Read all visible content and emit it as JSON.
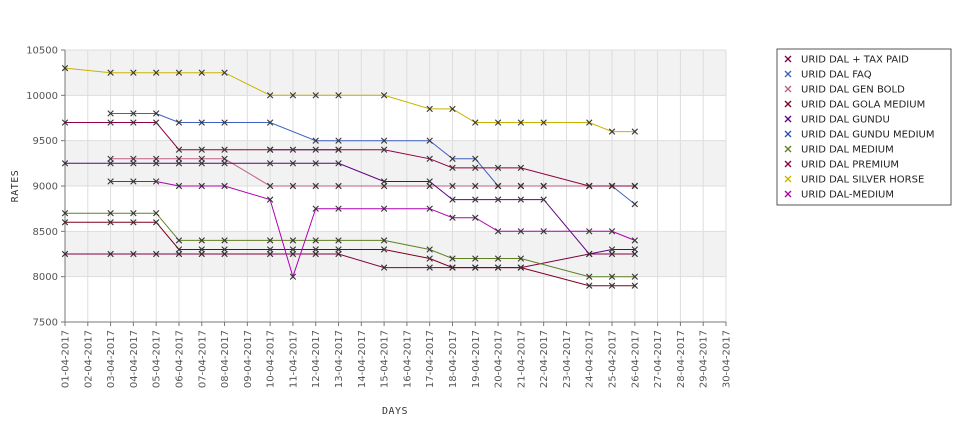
{
  "chart_data": {
    "type": "line",
    "xlabel": "DAYS",
    "ylabel": "RATES",
    "ylim": [
      7500,
      10500
    ],
    "yticks": [
      7500,
      8000,
      8500,
      9000,
      9500,
      10000,
      10500
    ],
    "grid": true,
    "legend_position": "right",
    "x": [
      "01-04-2017",
      "02-04-2017",
      "03-04-2017",
      "04-04-2017",
      "05-04-2017",
      "06-04-2017",
      "07-04-2017",
      "08-04-2017",
      "09-04-2017",
      "10-04-2017",
      "11-04-2017",
      "12-04-2017",
      "13-04-2017",
      "14-04-2017",
      "15-04-2017",
      "16-04-2017",
      "17-04-2017",
      "18-04-2017",
      "19-04-2017",
      "20-04-2017",
      "21-04-2017",
      "22-04-2017",
      "23-04-2017",
      "24-04-2017",
      "25-04-2017",
      "26-04-2017",
      "27-04-2017",
      "28-04-2017",
      "29-04-2017",
      "30-04-2017"
    ],
    "series": [
      {
        "name": "URID DAL + TAX PAID",
        "color": "#800040",
        "points": [
          [
            0,
            8250
          ],
          [
            2,
            8250
          ],
          [
            3,
            8250
          ],
          [
            4,
            8250
          ],
          [
            5,
            8250
          ],
          [
            6,
            8250
          ],
          [
            7,
            8250
          ],
          [
            9,
            8250
          ],
          [
            10,
            8250
          ],
          [
            11,
            8250
          ],
          [
            12,
            8250
          ],
          [
            14,
            8100
          ],
          [
            16,
            8100
          ],
          [
            17,
            8100
          ],
          [
            18,
            8100
          ],
          [
            19,
            8100
          ],
          [
            20,
            8100
          ],
          [
            23,
            8250
          ],
          [
            24,
            8250
          ],
          [
            25,
            8250
          ]
        ]
      },
      {
        "name": "URID DAL FAQ",
        "color": "#4060c0",
        "points": [
          [
            2,
            9800
          ],
          [
            3,
            9800
          ],
          [
            4,
            9800
          ],
          [
            5,
            9700
          ],
          [
            6,
            9700
          ],
          [
            7,
            9700
          ],
          [
            9,
            9700
          ],
          [
            11,
            9500
          ],
          [
            12,
            9500
          ],
          [
            14,
            9500
          ],
          [
            16,
            9500
          ],
          [
            17,
            9300
          ],
          [
            18,
            9300
          ],
          [
            19,
            9000
          ],
          [
            20,
            9000
          ],
          [
            21,
            9000
          ],
          [
            23,
            9000
          ],
          [
            24,
            9000
          ],
          [
            25,
            8800
          ]
        ]
      },
      {
        "name": "URID DAL GEN BOLD",
        "color": "#c06080",
        "points": [
          [
            2,
            9300
          ],
          [
            3,
            9300
          ],
          [
            4,
            9300
          ],
          [
            5,
            9300
          ],
          [
            6,
            9300
          ],
          [
            7,
            9300
          ],
          [
            9,
            9000
          ],
          [
            10,
            9000
          ],
          [
            11,
            9000
          ],
          [
            12,
            9000
          ],
          [
            14,
            9000
          ],
          [
            16,
            9000
          ],
          [
            17,
            9000
          ],
          [
            18,
            9000
          ],
          [
            19,
            9000
          ],
          [
            20,
            9000
          ],
          [
            21,
            9000
          ],
          [
            23,
            9000
          ],
          [
            24,
            9000
          ],
          [
            25,
            9000
          ]
        ]
      },
      {
        "name": "URID DAL GOLA MEDIUM",
        "color": "#800020",
        "points": [
          [
            0,
            8600
          ],
          [
            2,
            8600
          ],
          [
            3,
            8600
          ],
          [
            4,
            8600
          ],
          [
            5,
            8300
          ],
          [
            6,
            8300
          ],
          [
            7,
            8300
          ],
          [
            9,
            8300
          ],
          [
            10,
            8300
          ],
          [
            11,
            8300
          ],
          [
            12,
            8300
          ],
          [
            14,
            8300
          ],
          [
            16,
            8200
          ],
          [
            17,
            8100
          ],
          [
            18,
            8100
          ],
          [
            19,
            8100
          ],
          [
            20,
            8100
          ],
          [
            23,
            7900
          ],
          [
            24,
            7900
          ],
          [
            25,
            7900
          ]
        ]
      },
      {
        "name": "URID DAL GUNDU",
        "color": "#600080",
        "points": [
          [
            0,
            9250
          ],
          [
            2,
            9250
          ],
          [
            3,
            9250
          ],
          [
            4,
            9250
          ],
          [
            5,
            9250
          ],
          [
            6,
            9250
          ],
          [
            7,
            9250
          ],
          [
            9,
            9250
          ],
          [
            10,
            9250
          ],
          [
            11,
            9250
          ],
          [
            12,
            9250
          ],
          [
            14,
            9050
          ],
          [
            16,
            9050
          ],
          [
            17,
            8850
          ],
          [
            18,
            8850
          ],
          [
            19,
            8850
          ],
          [
            20,
            8850
          ],
          [
            21,
            8850
          ],
          [
            23,
            8250
          ],
          [
            24,
            8300
          ],
          [
            25,
            8300
          ]
        ]
      },
      {
        "name": "URID DAL GUNDU MEDIUM",
        "color": "#3050b0",
        "points": [
          [
            9,
            9400
          ],
          [
            12,
            9400
          ]
        ]
      },
      {
        "name": "URID DAL MEDIUM",
        "color": "#608020",
        "points": [
          [
            0,
            8700
          ],
          [
            2,
            8700
          ],
          [
            3,
            8700
          ],
          [
            4,
            8700
          ],
          [
            5,
            8400
          ],
          [
            6,
            8400
          ],
          [
            7,
            8400
          ],
          [
            9,
            8400
          ],
          [
            10,
            8400
          ],
          [
            11,
            8400
          ],
          [
            12,
            8400
          ],
          [
            14,
            8400
          ],
          [
            16,
            8300
          ],
          [
            17,
            8200
          ],
          [
            18,
            8200
          ],
          [
            19,
            8200
          ],
          [
            20,
            8200
          ],
          [
            23,
            8000
          ],
          [
            24,
            8000
          ],
          [
            25,
            8000
          ]
        ]
      },
      {
        "name": "URID DAL PREMIUM",
        "color": "#900040",
        "points": [
          [
            0,
            9700
          ],
          [
            2,
            9700
          ],
          [
            3,
            9700
          ],
          [
            4,
            9700
          ],
          [
            5,
            9400
          ],
          [
            6,
            9400
          ],
          [
            7,
            9400
          ],
          [
            9,
            9400
          ],
          [
            10,
            9400
          ],
          [
            11,
            9400
          ],
          [
            12,
            9400
          ],
          [
            14,
            9400
          ],
          [
            16,
            9300
          ],
          [
            17,
            9200
          ],
          [
            18,
            9200
          ],
          [
            19,
            9200
          ],
          [
            20,
            9200
          ],
          [
            23,
            9000
          ],
          [
            24,
            9000
          ],
          [
            25,
            9000
          ]
        ]
      },
      {
        "name": "URID DAL SILVER HORSE",
        "color": "#c8b400",
        "points": [
          [
            0,
            10300
          ],
          [
            2,
            10250
          ],
          [
            3,
            10250
          ],
          [
            4,
            10250
          ],
          [
            5,
            10250
          ],
          [
            6,
            10250
          ],
          [
            7,
            10250
          ],
          [
            9,
            10000
          ],
          [
            10,
            10000
          ],
          [
            11,
            10000
          ],
          [
            12,
            10000
          ],
          [
            14,
            10000
          ],
          [
            16,
            9850
          ],
          [
            17,
            9850
          ],
          [
            18,
            9700
          ],
          [
            19,
            9700
          ],
          [
            20,
            9700
          ],
          [
            21,
            9700
          ],
          [
            23,
            9700
          ],
          [
            24,
            9600
          ],
          [
            25,
            9600
          ]
        ]
      },
      {
        "name": "URID DAL-MEDIUM",
        "color": "#b000b0",
        "points": [
          [
            2,
            9050
          ],
          [
            3,
            9050
          ],
          [
            4,
            9050
          ],
          [
            5,
            9000
          ],
          [
            6,
            9000
          ],
          [
            7,
            9000
          ],
          [
            9,
            8850
          ],
          [
            10,
            8000
          ],
          [
            11,
            8750
          ],
          [
            12,
            8750
          ],
          [
            14,
            8750
          ],
          [
            16,
            8750
          ],
          [
            17,
            8650
          ],
          [
            18,
            8650
          ],
          [
            19,
            8500
          ],
          [
            20,
            8500
          ],
          [
            21,
            8500
          ],
          [
            23,
            8500
          ],
          [
            24,
            8500
          ],
          [
            25,
            8400
          ]
        ]
      }
    ]
  }
}
